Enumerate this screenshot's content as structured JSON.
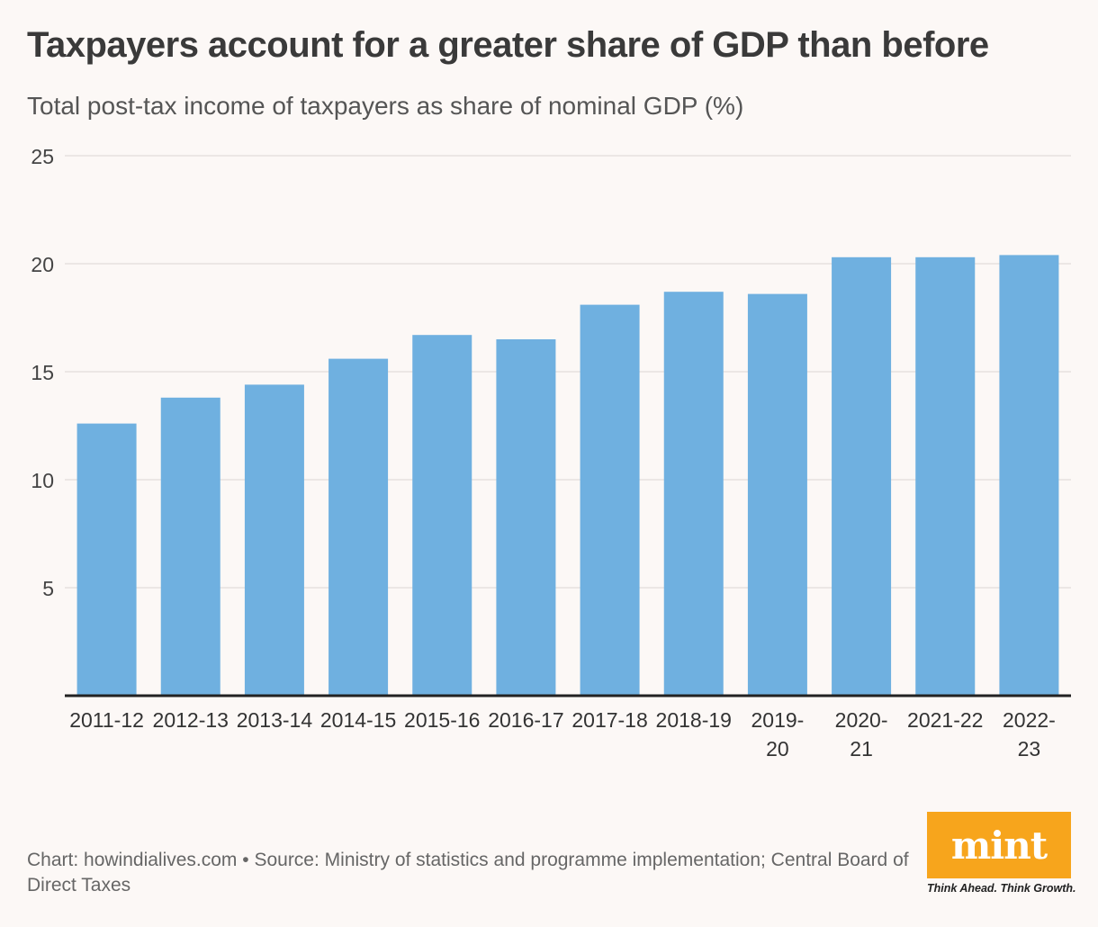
{
  "title": "Taxpayers account for a greater share of GDP than before",
  "subtitle": "Total post-tax income of taxpayers as share of nominal GDP (%)",
  "footer": {
    "credit": "Chart: howindialives.com • Source: Ministry of statistics and programme implementation; Central Board of Direct Taxes"
  },
  "brand": {
    "logo_text": "mint",
    "tagline": "Think Ahead. Think Growth.",
    "logo_color": "#f7a51c"
  },
  "colors": {
    "bar": "#6fb0e0",
    "background": "#fcf8f6",
    "grid": "#e6e1df",
    "baseline": "#222222"
  },
  "chart_data": {
    "type": "bar",
    "categories": [
      [
        "2011-12"
      ],
      [
        "2012-13"
      ],
      [
        "2013-14"
      ],
      [
        "2014-15"
      ],
      [
        "2015-16"
      ],
      [
        "2016-17"
      ],
      [
        "2017-18"
      ],
      [
        "2018-19"
      ],
      [
        "2019-",
        "20"
      ],
      [
        "2020-",
        "21"
      ],
      [
        "2021-22"
      ],
      [
        "2022-",
        "23"
      ]
    ],
    "values": [
      12.6,
      13.8,
      14.4,
      15.6,
      16.7,
      16.5,
      18.1,
      18.7,
      18.6,
      20.3,
      20.3,
      20.4
    ],
    "yticks": [
      5,
      10,
      15,
      20,
      25
    ],
    "ylim": [
      0,
      25
    ],
    "grid": true,
    "xlabel": "",
    "ylabel": ""
  }
}
